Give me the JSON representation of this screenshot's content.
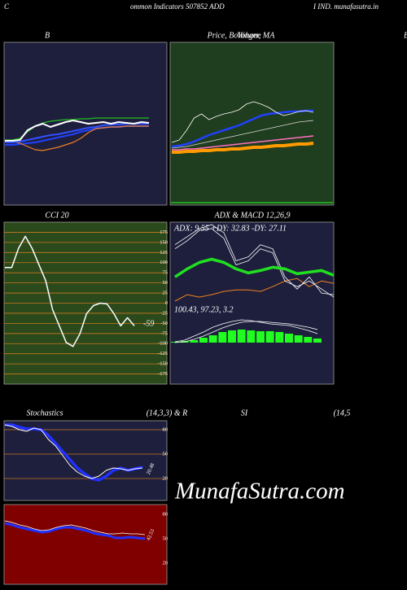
{
  "header": {
    "left": "C",
    "center": "ommon  Indicators 507852  ADD",
    "right": "I IND. munafasutra.in",
    "edge": "B"
  },
  "watermark": "MunafaSutra.com",
  "chart_data": [
    {
      "type": "line",
      "title": "B",
      "ylim": [
        0,
        100
      ],
      "series": [
        {
          "color": "#2040ff",
          "width": 2,
          "values": [
            37,
            37,
            37.5,
            38,
            38.5,
            39.5,
            40.5,
            41.5,
            42.5,
            43.5,
            45,
            46,
            47,
            47.5,
            48,
            48,
            48.5,
            48.5,
            48.5,
            48.5
          ]
        },
        {
          "color": "#f08020",
          "width": 1.2,
          "values": [
            39.5,
            39,
            38,
            36,
            34,
            33.5,
            34.5,
            35.5,
            37,
            38.5,
            41,
            44.5,
            47,
            47.5,
            48,
            48,
            48.5,
            48.5,
            48.5,
            48.5
          ]
        },
        {
          "color": "#20c020",
          "width": 1.2,
          "values": [
            40,
            40,
            41,
            45,
            48.5,
            50.5,
            51.5,
            52,
            52.5,
            52.5,
            53,
            53,
            53.5,
            53.5,
            53.5,
            53.5,
            53.5,
            53.5,
            53.5,
            53.5
          ]
        },
        {
          "color": "#3050ff",
          "width": 2,
          "values": [
            38.5,
            38.5,
            39,
            40,
            41,
            42,
            43,
            43.5,
            44.5,
            45.5,
            46.5,
            47.5,
            48,
            49,
            49.5,
            49.5,
            50,
            50,
            50,
            50
          ]
        },
        {
          "color": "#ffffff",
          "width": 2,
          "values": [
            39.5,
            39.5,
            40,
            46,
            48.5,
            50,
            48,
            49.5,
            51,
            52,
            51,
            50,
            50.5,
            51,
            50,
            51,
            50.5,
            50,
            51,
            50.5
          ]
        }
      ]
    },
    {
      "type": "line",
      "title": "Price,  Bollinger,  MA",
      "subtitle": "Volume",
      "ylim": [
        0,
        100
      ],
      "series": [
        {
          "color": "#ff9a00",
          "width": 4,
          "values": [
            32.5,
            32.5,
            33,
            33,
            33.5,
            33.5,
            34,
            34,
            34.5,
            34.5,
            35,
            35.5,
            35.5,
            36,
            36.5,
            36.5,
            37,
            37.5,
            37.5,
            38
          ]
        },
        {
          "color": "#ff70c0",
          "width": 1.5,
          "values": [
            34,
            34,
            34.5,
            34.5,
            35,
            35.5,
            36,
            36.5,
            37,
            37.5,
            38,
            38.5,
            39,
            39.5,
            40,
            40.5,
            41,
            41.5,
            42,
            42.5
          ]
        },
        {
          "color": "#d8d8d8",
          "width": 0.8,
          "values": [
            35,
            35.5,
            36,
            37,
            38,
            39,
            40,
            41,
            42,
            43,
            44,
            45,
            46,
            47,
            48,
            49,
            50,
            51,
            51.5,
            52
          ]
        },
        {
          "color": "#2040ff",
          "width": 2.5,
          "values": [
            36,
            36.5,
            37.5,
            39,
            41,
            43,
            44.5,
            46,
            47.5,
            49,
            51,
            53,
            55,
            56,
            56.5,
            57,
            57.5,
            57.5,
            58,
            58
          ]
        },
        {
          "color": "#ffffff",
          "width": 0.8,
          "values": [
            38.5,
            40,
            46,
            53.5,
            56,
            52.5,
            54.5,
            56,
            57,
            58.5,
            62,
            63.5,
            62,
            60,
            57,
            55,
            56,
            57.5,
            58,
            57
          ]
        }
      ]
    },
    {
      "type": "line",
      "title": "CCI 20",
      "annotation": "-59",
      "ylim": [
        -200,
        200
      ],
      "yticks": [
        175,
        150,
        125,
        100,
        75,
        50,
        25,
        0,
        -25,
        -50,
        -75,
        -100,
        -125,
        -150,
        -175
      ],
      "grid": true,
      "grid_color": "#c87820",
      "series": [
        {
          "color": "#ffffff",
          "width": 1.5,
          "values": [
            88,
            88,
            135,
            165,
            135,
            95,
            55,
            -16,
            -56,
            -97,
            -107,
            -76,
            -26,
            -6,
            0,
            -2,
            -26,
            -56,
            -36,
            -56
          ]
        }
      ]
    },
    {
      "type": "line",
      "title": "ADX  & MACD 12,26,9",
      "annotation": "ADX: 9.55 +DY: 32.83 -DY: 27.11",
      "ylim": [
        0,
        100
      ],
      "series": [
        {
          "color": "#f08020",
          "width": 1,
          "values": [
            2,
            10,
            7,
            10,
            14,
            16,
            16,
            14,
            20,
            27,
            30,
            20,
            27,
            24
          ]
        },
        {
          "color": "#ffffff",
          "width": 0.8,
          "values": [
            72,
            82,
            92,
            97,
            87,
            52,
            57,
            72,
            67,
            32,
            17,
            32,
            12,
            10
          ]
        },
        {
          "color": "#ffffff",
          "width": 0.8,
          "values": [
            67,
            77,
            90,
            92,
            80,
            47,
            52,
            67,
            62,
            27,
            20,
            27,
            17,
            7
          ]
        },
        {
          "color": "#20e020",
          "width": 3.5,
          "values": [
            32,
            42,
            50,
            54,
            50,
            42,
            37,
            40,
            44,
            42,
            36,
            38,
            40,
            34
          ]
        }
      ]
    },
    {
      "type": "line",
      "annotation": "100.43,  97.23,  3.2",
      "ylim": [
        -51,
        49
      ],
      "series": [
        {
          "kind": "bar",
          "color": "#20ff20",
          "values": [
            1,
            2,
            3,
            6,
            9,
            13,
            15,
            16,
            15,
            14,
            14,
            13,
            11,
            9,
            7,
            5
          ]
        },
        {
          "color": "#ffffff",
          "width": 0.8,
          "values": [
            1,
            3,
            8,
            13,
            19,
            23,
            26,
            28,
            27,
            25,
            23,
            22,
            21,
            18,
            15,
            11
          ]
        },
        {
          "color": "#ffffff",
          "width": 0.8,
          "values": [
            0,
            1,
            4,
            8,
            13,
            18,
            22,
            25,
            26,
            26,
            25,
            24,
            23,
            21,
            19,
            16
          ]
        }
      ]
    },
    {
      "type": "line",
      "title": "Stochastics",
      "subtitle": "(14,3,3) & R",
      "annotation": "20.48",
      "ylim": [
        -7,
        91
      ],
      "yticks": [
        80,
        50,
        20
      ],
      "grid": true,
      "grid_color": "#c87820",
      "series": [
        {
          "color": "#2030ff",
          "width": 3.5,
          "values": [
            86,
            86,
            83,
            81,
            81,
            80,
            73,
            63,
            53,
            43,
            33,
            26,
            20,
            18,
            23,
            30,
            33,
            30,
            32,
            34
          ]
        },
        {
          "color": "#ffffff",
          "width": 1,
          "values": [
            86,
            84,
            80,
            78,
            82,
            80,
            68,
            60,
            48,
            36,
            28,
            23,
            20,
            23,
            30,
            33,
            32,
            30,
            32,
            33
          ]
        }
      ]
    },
    {
      "type": "line",
      "title": "SI",
      "subtitle": "(14,5",
      "annotation": "42.53",
      "ylim": [
        -6,
        92
      ],
      "yticks": [
        80,
        50,
        20
      ],
      "grid": false,
      "series": [
        {
          "color": "#2030ff",
          "width": 3,
          "values": [
            69,
            67,
            64,
            62,
            60,
            58,
            59,
            62,
            64,
            64,
            62,
            60,
            57,
            55,
            54,
            51,
            51,
            52,
            51,
            50
          ]
        },
        {
          "color": "#ffffff",
          "width": 0.8,
          "values": [
            72,
            70,
            67,
            65,
            62,
            60,
            61,
            64,
            66,
            67,
            65,
            63,
            60,
            58,
            56,
            56,
            57,
            56,
            56,
            55
          ]
        }
      ]
    }
  ]
}
